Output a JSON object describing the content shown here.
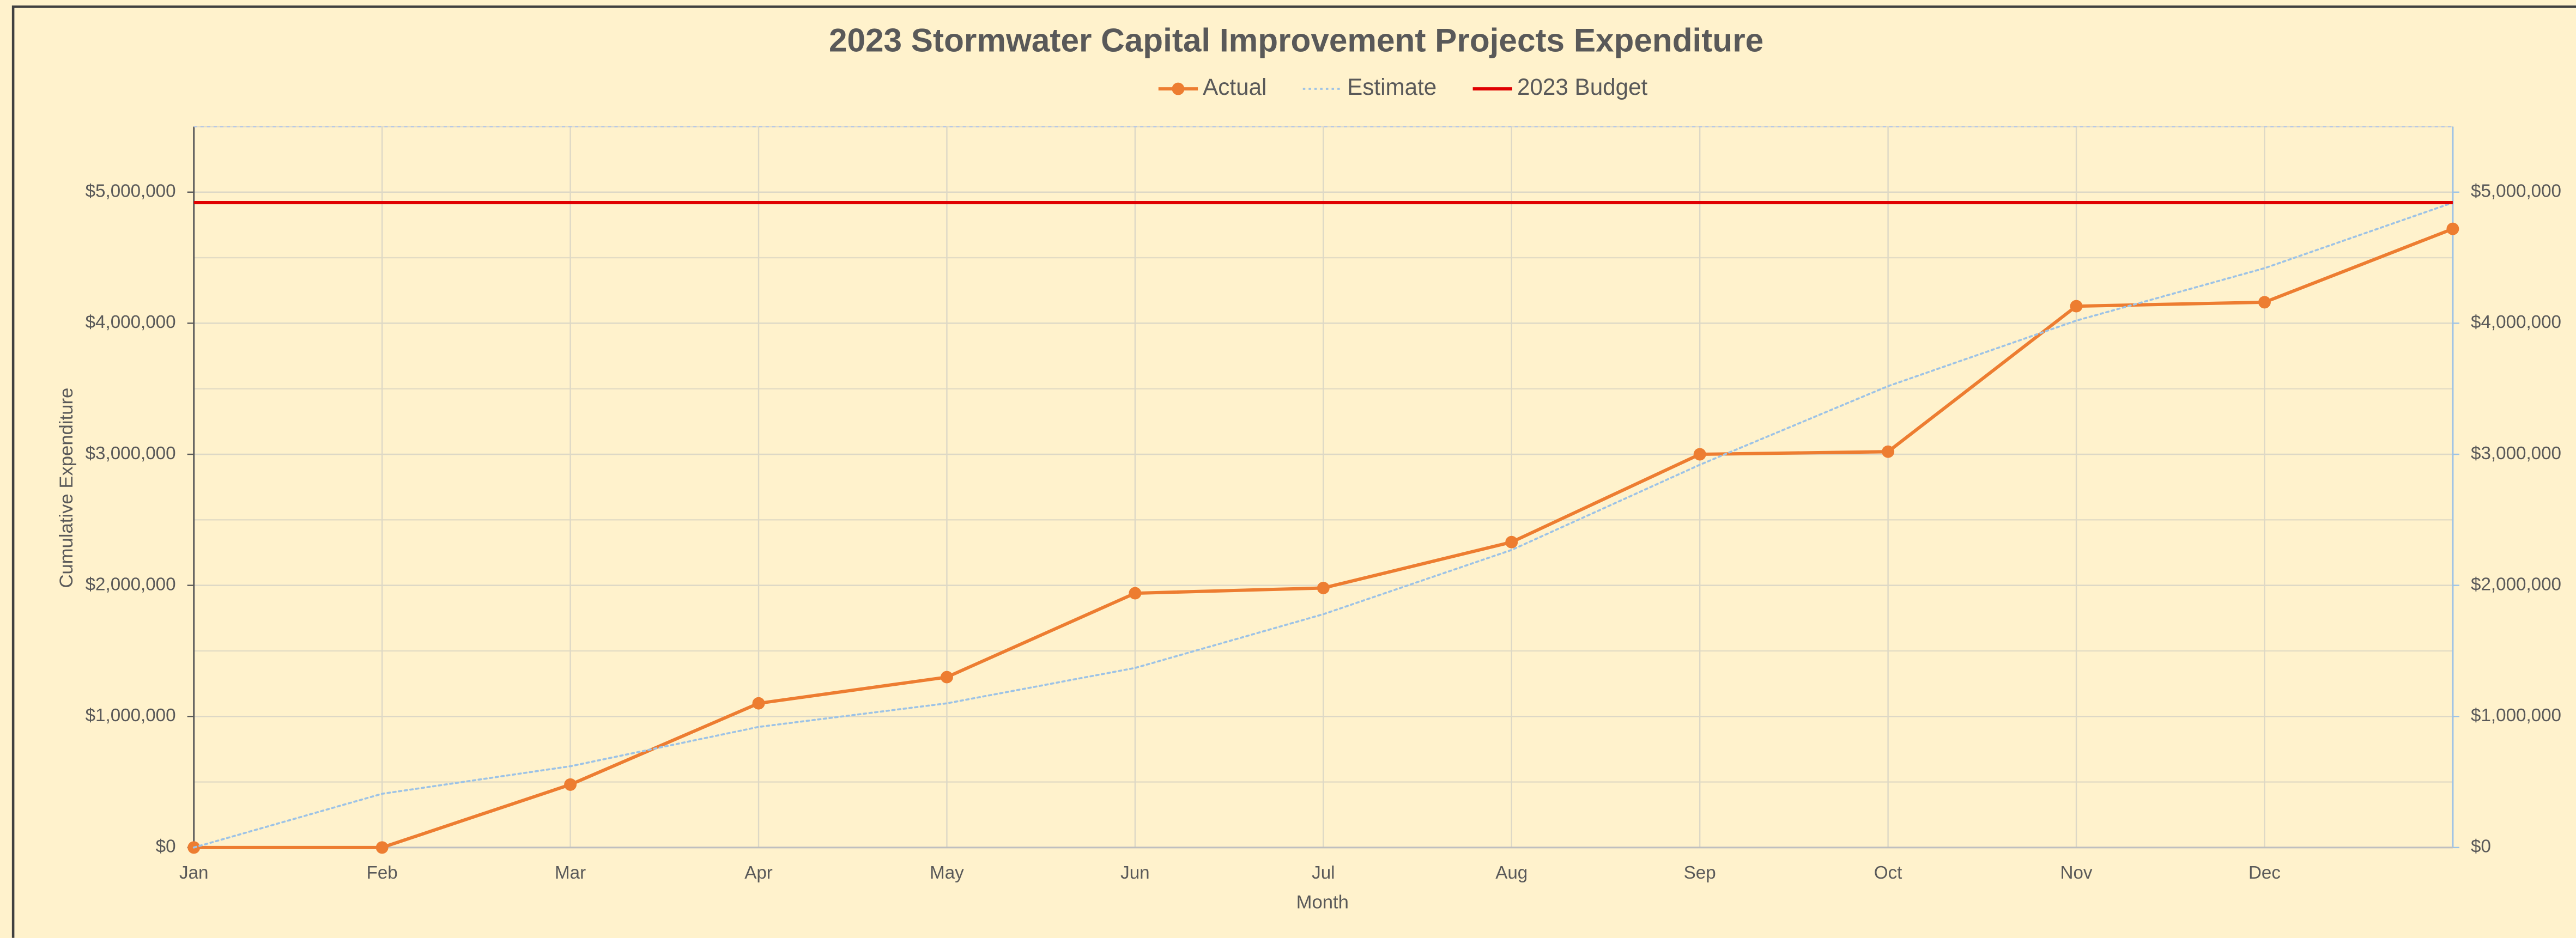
{
  "chart_data": {
    "type": "line",
    "title": "2023 Stormwater Capital Improvement Projects Expenditure",
    "x_label": "Month",
    "y_label": "Cumulative Expenditure",
    "categories": [
      "Jan",
      "Feb",
      "Mar",
      "Apr",
      "May",
      "Jun",
      "Jul",
      "Aug",
      "Sep",
      "Oct",
      "Nov",
      "Dec",
      null
    ],
    "series": [
      {
        "name": "Actual",
        "color": "#ed7d31",
        "style": "solid",
        "markers": true,
        "values": [
          0,
          0,
          480000,
          1100000,
          1300000,
          1940000,
          1980000,
          2330000,
          3000000,
          3020000,
          4130000,
          4160000,
          4720000
        ]
      },
      {
        "name": "Estimate",
        "color": "#9dc3e6",
        "style": "dotted",
        "markers": false,
        "values": [
          0,
          410000,
          620000,
          920000,
          1100000,
          1370000,
          1780000,
          2270000,
          2920000,
          3520000,
          4020000,
          4420000,
          4920000
        ]
      },
      {
        "name": "2023 Budget",
        "color": "#e00000",
        "style": "solid",
        "markers": false,
        "values": [
          4920000,
          4920000,
          4920000,
          4920000,
          4920000,
          4920000,
          4920000,
          4920000,
          4920000,
          4920000,
          4920000,
          4920000,
          4920000
        ]
      }
    ],
    "ylim": [
      0,
      5500000
    ],
    "yticks": [
      {
        "value": 0,
        "label": "$0"
      },
      {
        "value": 1000000,
        "label": "$1,000,000"
      },
      {
        "value": 2000000,
        "label": "$2,000,000"
      },
      {
        "value": 3000000,
        "label": "$3,000,000"
      },
      {
        "value": 4000000,
        "label": "$4,000,000"
      },
      {
        "value": 5000000,
        "label": "$5,000,000"
      }
    ],
    "minor_yticks": [
      500000,
      1500000,
      2500000,
      3500000,
      4500000,
      5500000
    ],
    "y2lim": [
      0,
      5500000
    ],
    "y2ticks": [
      {
        "value": 0,
        "label": "$0"
      },
      {
        "value": 1000000,
        "label": "$1,000,000"
      },
      {
        "value": 2000000,
        "label": "$2,000,000"
      },
      {
        "value": 3000000,
        "label": "$3,000,000"
      },
      {
        "value": 4000000,
        "label": "$4,000,000"
      },
      {
        "value": 5000000,
        "label": "$5,000,000"
      }
    ],
    "grid": true,
    "legend": "top"
  }
}
